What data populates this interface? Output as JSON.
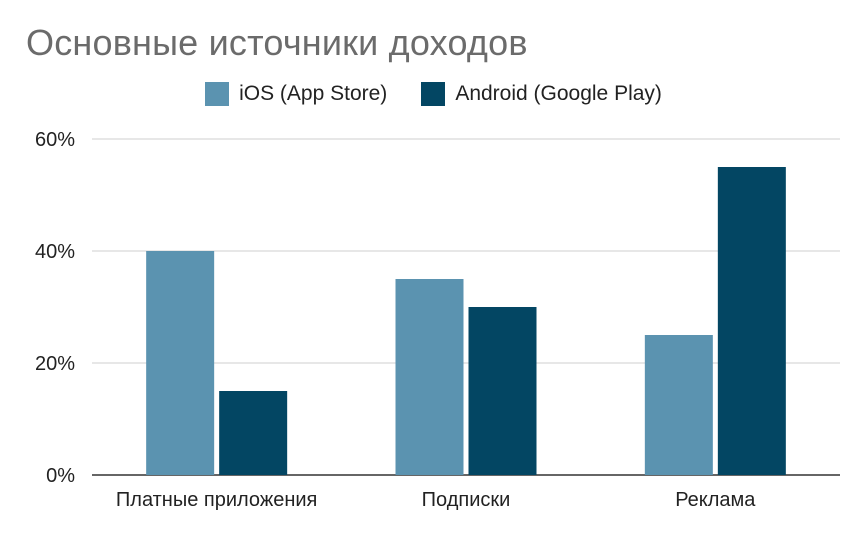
{
  "chart_data": {
    "type": "bar",
    "title": "Основные источники доходов",
    "categories": [
      "Платные приложения",
      "Подписки",
      "Реклама"
    ],
    "series": [
      {
        "name": "iOS (App Store)",
        "values": [
          40,
          35,
          25
        ],
        "color": "#5b93b0"
      },
      {
        "name": "Android (Google Play)",
        "values": [
          15,
          30,
          55
        ],
        "color": "#034663"
      }
    ],
    "xlabel": "",
    "ylabel": "",
    "ylim": [
      0,
      60
    ],
    "yticks": [
      "0%",
      "20%",
      "40%",
      "60%"
    ],
    "ytick_values": [
      0,
      20,
      40,
      60
    ],
    "grid": true,
    "legend_position": "top-center"
  }
}
